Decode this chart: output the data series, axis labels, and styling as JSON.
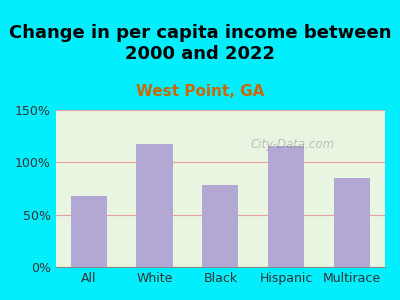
{
  "title": "Change in per capita income between\n2000 and 2022",
  "subtitle": "West Point, GA",
  "categories": [
    "All",
    "White",
    "Black",
    "Hispanic",
    "Multirace"
  ],
  "values": [
    68,
    118,
    78,
    116,
    85
  ],
  "bar_color": "#b3a8d4",
  "title_fontsize": 13,
  "subtitle_fontsize": 11,
  "subtitle_color": "#cc6600",
  "title_color": "#000000",
  "background_color": "#00eeff",
  "plot_bg_top": "#e8f5e0",
  "plot_bg_bottom": "#f5f5e8",
  "ylim": [
    0,
    150
  ],
  "yticks": [
    0,
    50,
    100,
    150
  ],
  "ytick_labels": [
    "0%",
    "50%",
    "100%",
    "150%"
  ],
  "grid_color": "#e8a0a0",
  "watermark": "City-Data.com"
}
